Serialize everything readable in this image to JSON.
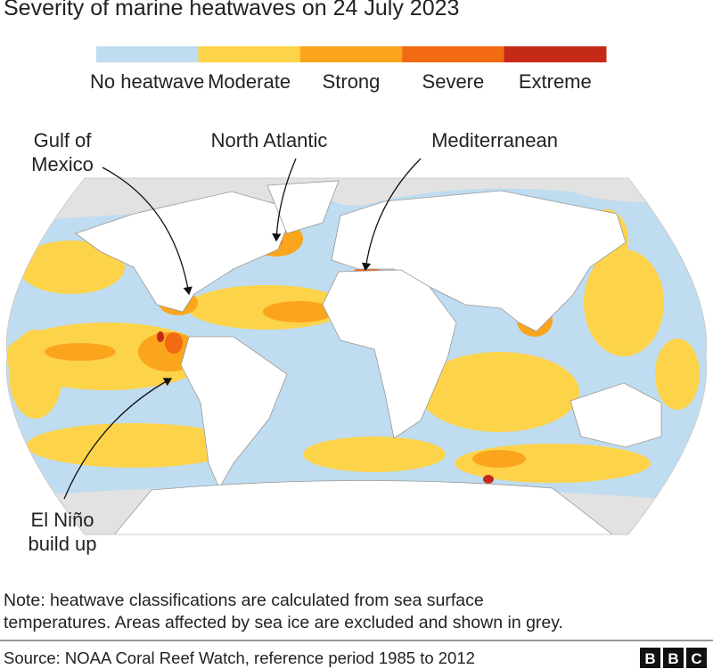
{
  "title": "Severity of marine heatwaves on 24 July 2023",
  "legend": {
    "items": [
      {
        "label": "No heatwave",
        "color": "#bfdcf0"
      },
      {
        "label": "Moderate",
        "color": "#fdd34a"
      },
      {
        "label": "Strong",
        "color": "#fba51c"
      },
      {
        "label": "Severe",
        "color": "#f26b12"
      },
      {
        "label": "Extreme",
        "color": "#c52a18"
      }
    ]
  },
  "annotations": [
    {
      "lines": [
        "Gulf of",
        "Mexico"
      ]
    },
    {
      "lines": [
        "North Atlantic"
      ]
    },
    {
      "lines": [
        "Mediterranean"
      ]
    },
    {
      "lines": [
        "El Niño",
        "build up"
      ]
    }
  ],
  "note": [
    "Note: heatwave classifications are calculated from sea surface",
    "temperatures. Areas affected by sea ice are excluded and shown in grey."
  ],
  "source": "Source: NOAA Coral Reef Watch, reference period 1985 to 2012",
  "logo": [
    "B",
    "B",
    "C"
  ]
}
